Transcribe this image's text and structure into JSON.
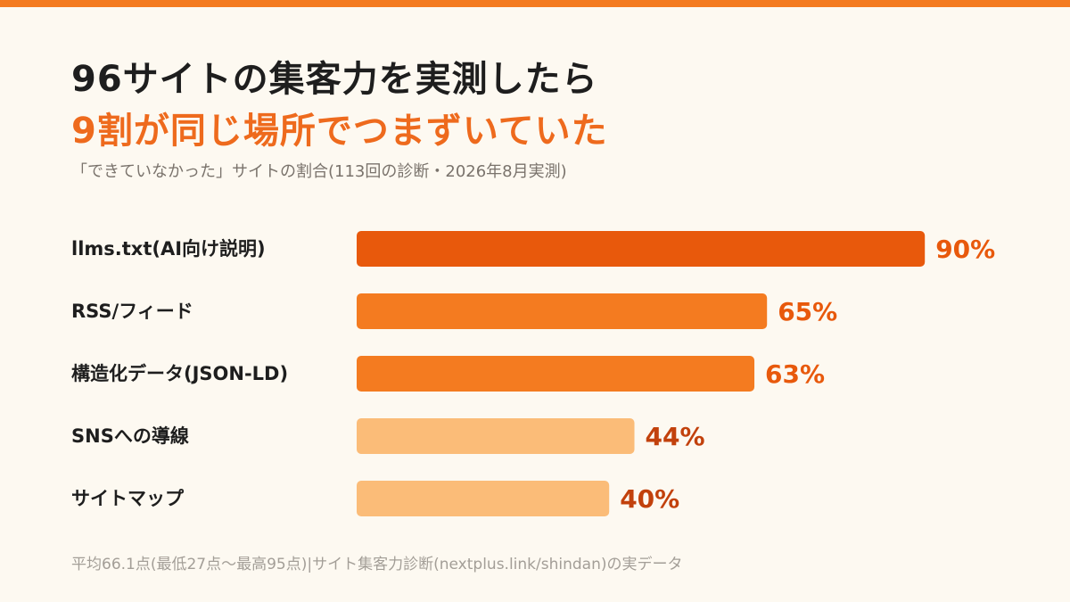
{
  "header": {
    "title_line1": "96サイトの集客力を実測したら",
    "title_line2": "9割が同じ場所でつまずいていた",
    "subtitle": "「できていなかった」サイトの割合(113回の診断・2026年8月実測)"
  },
  "footer": {
    "note": "平均66.1点(最低27点〜最高95点)|サイト集客力診断(nextplus.link/shindan)の実データ"
  },
  "colors": {
    "accent": "#F47B20",
    "title_highlight": "#EE6A1D",
    "bar_dark": "#E8590C",
    "bar_mid": "#F47B20",
    "bar_light": "#FBBC78",
    "label_dark": "#E8590C",
    "label_light": "#C2410C",
    "text": "#1E1E1E"
  },
  "chart_data": {
    "type": "bar",
    "orientation": "horizontal",
    "categories": [
      "llms.txt(AI向け説明)",
      "RSS/フィード",
      "構造化データ(JSON-LD)",
      "SNSへの導線",
      "サイトマップ"
    ],
    "values": [
      90,
      65,
      63,
      44,
      40
    ],
    "value_labels": [
      "90%",
      "65%",
      "63%",
      "44%",
      "40%"
    ],
    "unit": "%",
    "xlim": [
      0,
      100
    ],
    "grid": false,
    "legend": "none"
  }
}
